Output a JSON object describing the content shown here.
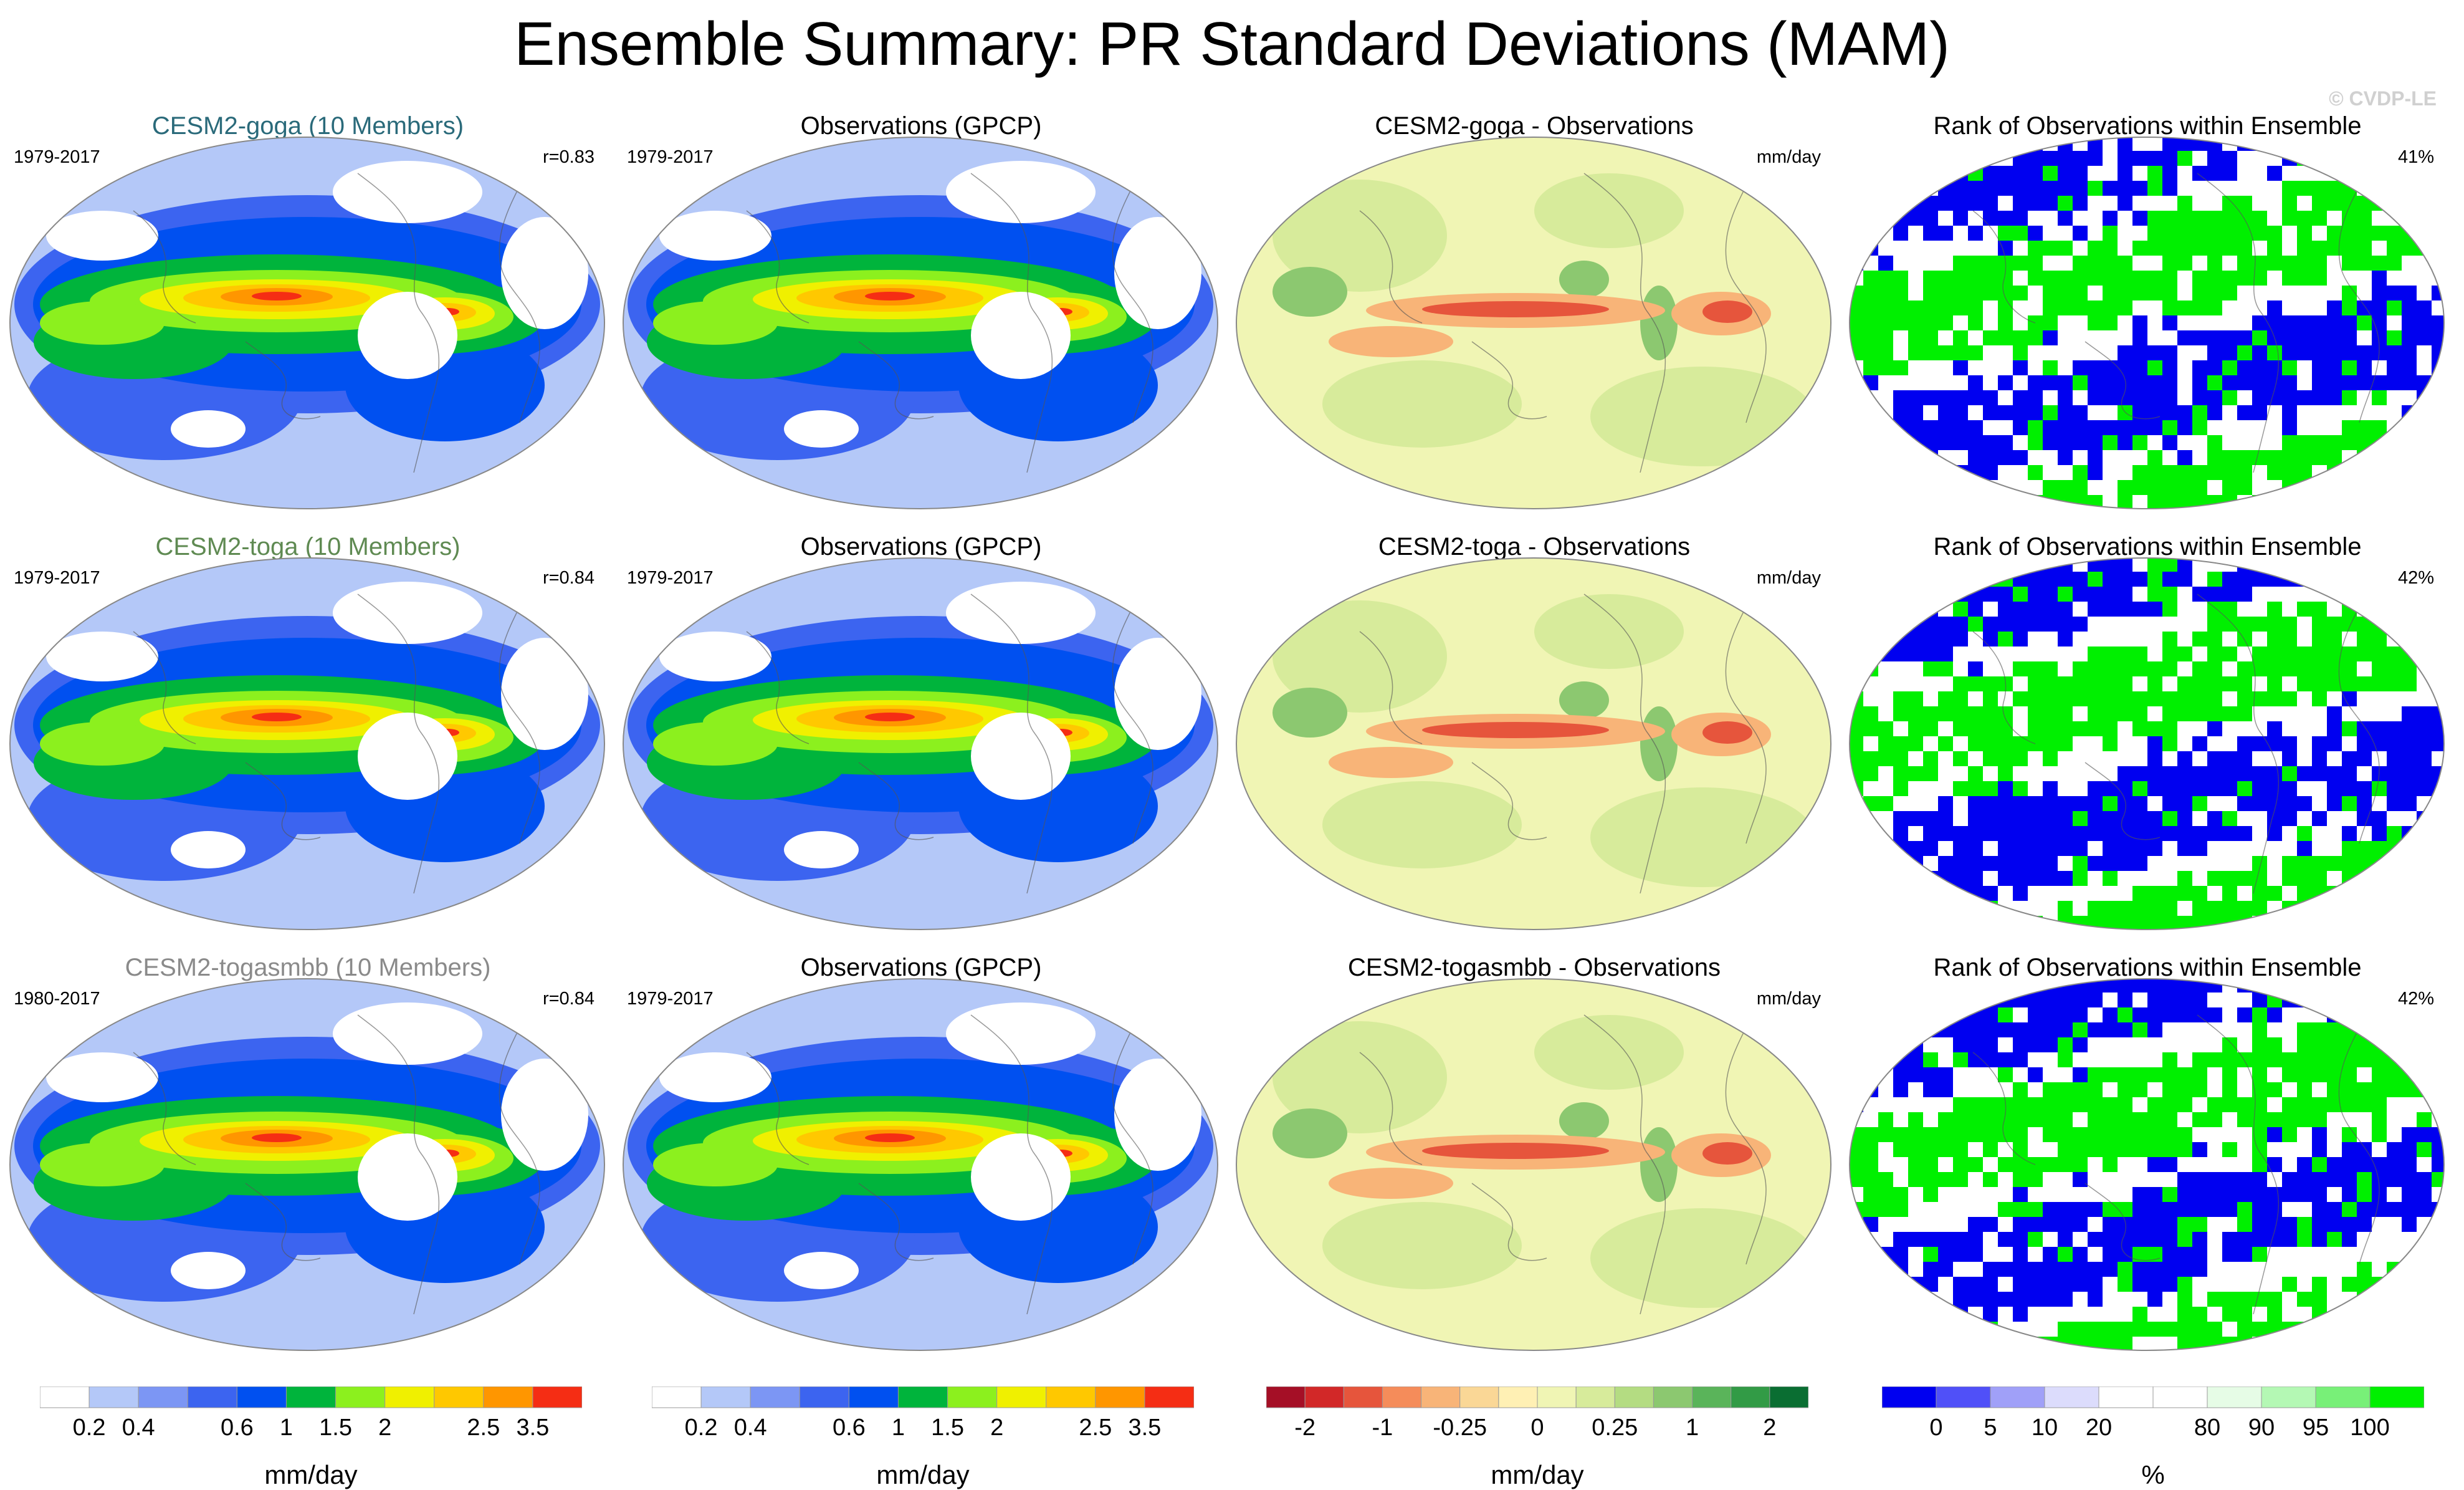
{
  "title": "Ensemble Summary: PR Standard Deviations (MAM)",
  "watermark": "© CVDP-LE",
  "rows": [
    {
      "model": {
        "title": "CESM2-goga (10 Members)",
        "title_color": "#2a6a7a",
        "period": "1979-2017",
        "stat": "r=0.83"
      },
      "obs": {
        "title": "Observations (GPCP)",
        "period": "1979-2017"
      },
      "diff": {
        "title": "CESM2-goga - Observations",
        "units": "mm/day"
      },
      "rank": {
        "title": "Rank of Observations within Ensemble",
        "stat": "41%"
      }
    },
    {
      "model": {
        "title": "CESM2-toga (10 Members)",
        "title_color": "#5f8a52",
        "period": "1979-2017",
        "stat": "r=0.84"
      },
      "obs": {
        "title": "Observations (GPCP)",
        "period": "1979-2017"
      },
      "diff": {
        "title": "CESM2-toga - Observations",
        "units": "mm/day"
      },
      "rank": {
        "title": "Rank of Observations within Ensemble",
        "stat": "42%"
      }
    },
    {
      "model": {
        "title": "CESM2-togasmbb (10 Members)",
        "title_color": "#8a8a8a",
        "period": "1980-2017",
        "stat": "r=0.84"
      },
      "obs": {
        "title": "Observations (GPCP)",
        "period": "1979-2017"
      },
      "diff": {
        "title": "CESM2-togasmbb - Observations",
        "units": "mm/day"
      },
      "rank": {
        "title": "Rank of Observations within Ensemble",
        "stat": "42%"
      }
    }
  ],
  "colorbars": [
    {
      "label": "mm/day",
      "colors": [
        "#ffffff",
        "#b4c8f8",
        "#7c96f4",
        "#3c64f0",
        "#0050f0",
        "#00b43c",
        "#8cf01e",
        "#f0f000",
        "#ffc800",
        "#ff9600",
        "#f52d14"
      ],
      "ticks": [
        "0.2",
        "0.4",
        "0.6",
        "1",
        "1.5",
        "2",
        "2.5",
        "3.5"
      ]
    },
    {
      "label": "mm/day",
      "colors": [
        "#ffffff",
        "#b4c8f8",
        "#7c96f4",
        "#3c64f0",
        "#0050f0",
        "#00b43c",
        "#8cf01e",
        "#f0f000",
        "#ffc800",
        "#ff9600",
        "#f52d14"
      ],
      "ticks": [
        "0.2",
        "0.4",
        "0.6",
        "1",
        "1.5",
        "2",
        "2.5",
        "3.5"
      ]
    },
    {
      "label": "mm/day",
      "colors": [
        "#a50f26",
        "#d22828",
        "#e6553c",
        "#f58c5a",
        "#f8b478",
        "#fad796",
        "#fff0b4",
        "#f0f5b4",
        "#d7eb9b",
        "#b4dc82",
        "#8cc870",
        "#5ab45a",
        "#329b46",
        "#0a6e32"
      ],
      "ticks": [
        "-2",
        "-1",
        "-0.25",
        "0",
        "0.25",
        "1",
        "2"
      ]
    },
    {
      "label": "%",
      "colors": [
        "#0000f0",
        "#5050f8",
        "#a0a0f8",
        "#dcdcfc",
        "#ffffff",
        "#ffffff",
        "#e6fce6",
        "#b4f8b4",
        "#78f078",
        "#00f000"
      ],
      "ticks": [
        "0",
        "5",
        "10",
        "20",
        "80",
        "90",
        "95",
        "100"
      ]
    }
  ]
}
